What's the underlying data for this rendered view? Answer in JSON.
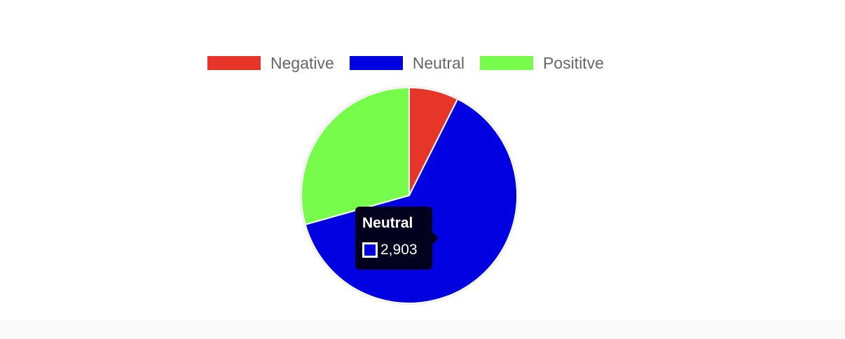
{
  "chart_data": {
    "type": "pie",
    "categories": [
      "Negative",
      "Neutral",
      "Posititve"
    ],
    "values": [
      340,
      2903,
      1347
    ],
    "colors": [
      "#e8352a",
      "#0000e0",
      "#77fc4c"
    ],
    "legend_position": "top",
    "tooltip": {
      "title": "Neutral",
      "value": "2,903",
      "color": "#0000e0"
    }
  }
}
